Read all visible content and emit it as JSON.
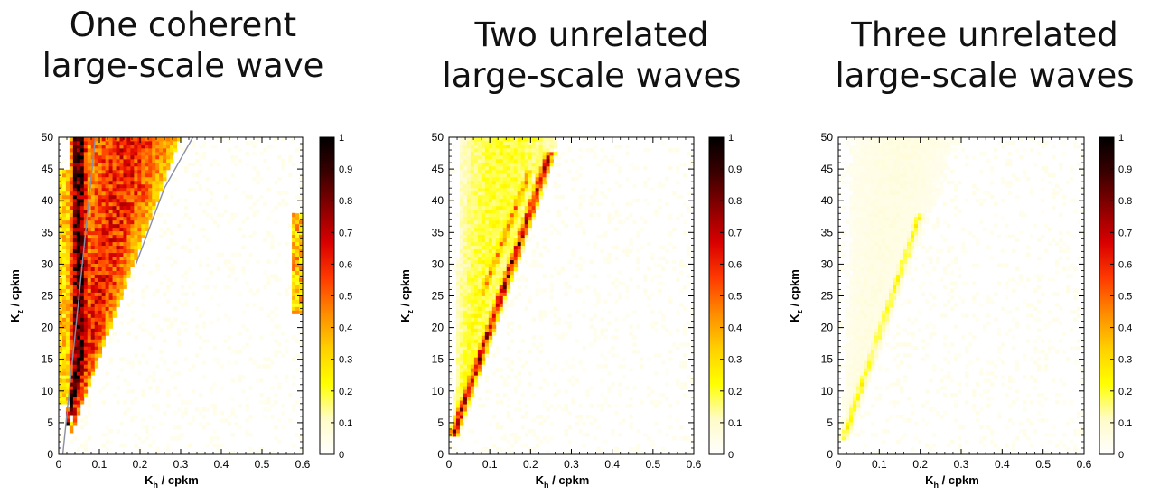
{
  "colorbar": {
    "ticks": [
      "1",
      "0.9",
      "0.8",
      "0.7",
      "0.6",
      "0.5",
      "0.4",
      "0.3",
      "0.2",
      "0.1",
      "0"
    ],
    "stops": [
      "#ffffff",
      "#fffbc8",
      "#ffff00",
      "#ffd000",
      "#ff8c00",
      "#ff3a00",
      "#d90000",
      "#8a0000",
      "#3a0000",
      "#000000"
    ]
  },
  "chart_data": [
    {
      "type": "heatmap",
      "title": [
        "One coherent",
        "large-scale wave"
      ],
      "xlabel_main": "K",
      "xlabel_sub": "h",
      "xlabel_unit": " / cpkm",
      "ylabel_main": "K",
      "ylabel_sub": "z",
      "ylabel_unit": " / cpkm",
      "xlim": [
        0,
        0.6
      ],
      "ylim": [
        0,
        50
      ],
      "zlim": [
        0,
        1
      ],
      "xticks": [
        "0",
        "0.1",
        "0.2",
        "0.3",
        "0.4",
        "0.5",
        "0.6"
      ],
      "yticks": [
        "0",
        "5",
        "10",
        "15",
        "20",
        "25",
        "30",
        "35",
        "40",
        "45",
        "50"
      ],
      "features": [
        {
          "shape": "wedge",
          "from": [
            0.03,
            3
          ],
          "to_left": [
            0.05,
            50
          ],
          "to_right": [
            0.3,
            50
          ],
          "value": 0.6
        },
        {
          "shape": "wedge",
          "from": [
            0.02,
            4
          ],
          "to_left": [
            0.03,
            20
          ],
          "to_right": [
            0.07,
            14
          ],
          "value": 0.9
        },
        {
          "shape": "band",
          "x": [
            0.0,
            0.05
          ],
          "y": [
            8,
            45
          ],
          "value": 0.35
        },
        {
          "shape": "band",
          "x": [
            0.57,
            0.6
          ],
          "y": [
            22,
            38
          ],
          "value": 0.4
        }
      ],
      "curves": [
        {
          "points": [
            [
              0.01,
              0
            ],
            [
              0.05,
              25
            ],
            [
              0.09,
              50
            ]
          ]
        },
        {
          "points": [
            [
              0.19,
              30
            ],
            [
              0.26,
              42
            ],
            [
              0.33,
              50
            ]
          ]
        }
      ]
    },
    {
      "type": "heatmap",
      "title": [
        "Two unrelated",
        "large-scale waves"
      ],
      "xlabel_main": "K",
      "xlabel_sub": "h",
      "xlabel_unit": " / cpkm",
      "ylabel_main": "K",
      "ylabel_sub": "z",
      "ylabel_unit": " / cpkm",
      "xlim": [
        0,
        0.6
      ],
      "ylim": [
        0,
        50
      ],
      "zlim": [
        0,
        1
      ],
      "xticks": [
        "0",
        "0.1",
        "0.2",
        "0.3",
        "0.4",
        "0.5",
        "0.6"
      ],
      "yticks": [
        "0",
        "5",
        "10",
        "15",
        "20",
        "25",
        "30",
        "35",
        "40",
        "45",
        "50"
      ],
      "features": [
        {
          "shape": "wedge",
          "from": [
            0.01,
            2
          ],
          "to_left": [
            0.03,
            50
          ],
          "to_right": [
            0.27,
            50
          ],
          "value": 0.2
        },
        {
          "shape": "ridge",
          "from": [
            0.01,
            3
          ],
          "to": [
            0.25,
            48
          ],
          "value": 0.75
        },
        {
          "shape": "ridge",
          "from": [
            0.08,
            25
          ],
          "to": [
            0.2,
            45
          ],
          "value": 0.45
        }
      ],
      "curves": []
    },
    {
      "type": "heatmap",
      "title": [
        "Three unrelated",
        "large-scale waves"
      ],
      "xlabel_main": "K",
      "xlabel_sub": "h",
      "xlabel_unit": " / cpkm",
      "ylabel_main": "K",
      "ylabel_sub": "z",
      "ylabel_unit": " / cpkm",
      "xlim": [
        0,
        0.6
      ],
      "ylim": [
        0,
        50
      ],
      "zlim": [
        0,
        1
      ],
      "xticks": [
        "0",
        "0.1",
        "0.2",
        "0.3",
        "0.4",
        "0.5",
        "0.6"
      ],
      "yticks": [
        "0",
        "5",
        "10",
        "15",
        "20",
        "25",
        "30",
        "35",
        "40",
        "45",
        "50"
      ],
      "features": [
        {
          "shape": "ridge",
          "from": [
            0.01,
            2
          ],
          "to": [
            0.2,
            38
          ],
          "value": 0.22
        },
        {
          "shape": "wedge",
          "from": [
            0.01,
            2
          ],
          "to_left": [
            0.03,
            50
          ],
          "to_right": [
            0.3,
            50
          ],
          "value": 0.06
        }
      ],
      "curves": []
    }
  ]
}
